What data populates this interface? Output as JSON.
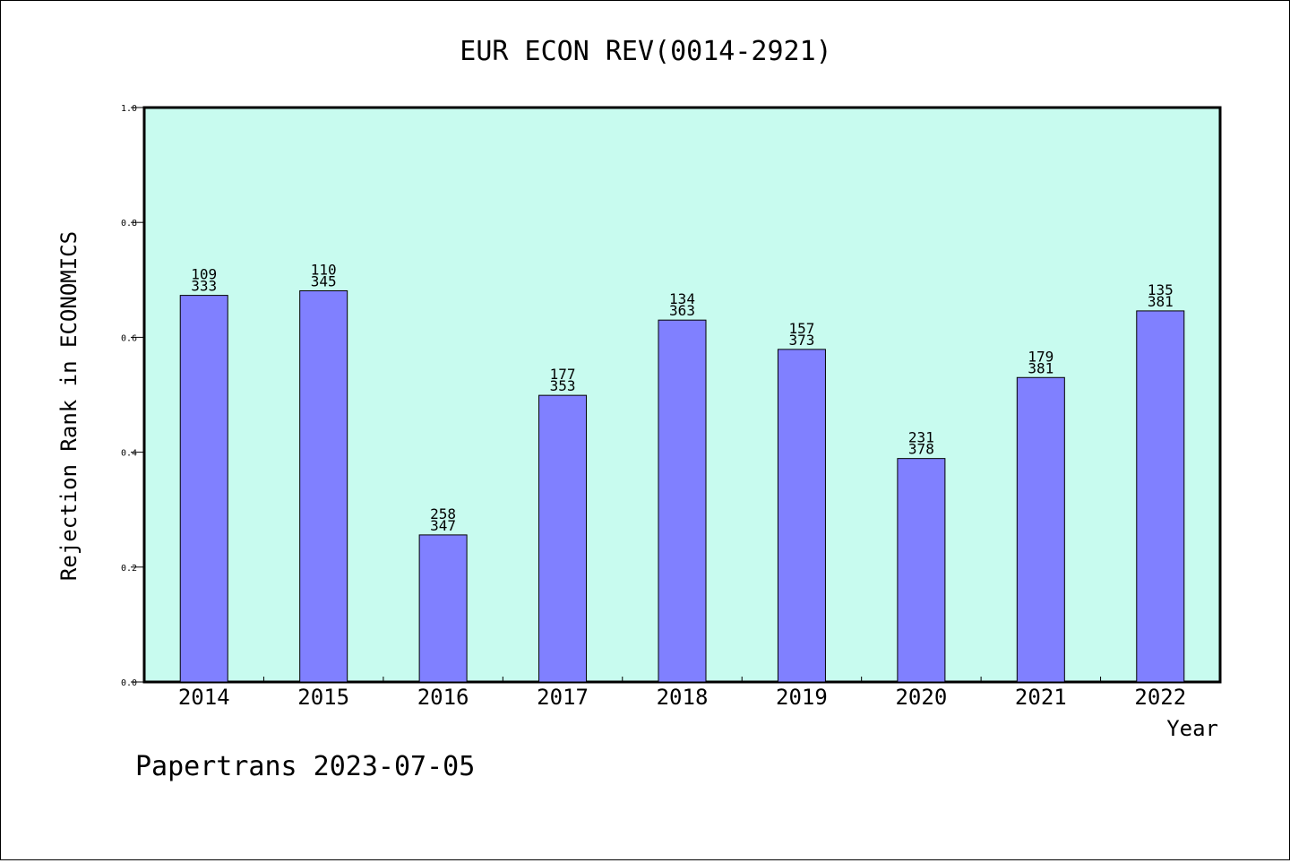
{
  "colors": {
    "plot_background": "#c8fbef",
    "bar_fill": "#8080ff",
    "bar_stroke": "#000000",
    "axis": "#000000"
  },
  "chart_data": {
    "type": "bar",
    "title": "EUR ECON REV(0014-2921)",
    "xlabel": "Year",
    "ylabel": "Rejection Rank in ECONOMICS",
    "ylim": [
      0.0,
      1.0
    ],
    "yticks": [
      "0.0",
      "0.2",
      "0.4",
      "0.6",
      "0.8",
      "1.0"
    ],
    "grid": false,
    "categories": [
      "2014",
      "2015",
      "2016",
      "2017",
      "2018",
      "2019",
      "2020",
      "2021",
      "2022"
    ],
    "values": [
      0.673,
      0.681,
      0.256,
      0.499,
      0.63,
      0.579,
      0.389,
      0.53,
      0.646
    ],
    "rank_labels": [
      "109",
      "110",
      "258",
      "177",
      "134",
      "157",
      "231",
      "179",
      "135"
    ],
    "total_labels": [
      "333",
      "345",
      "347",
      "353",
      "363",
      "373",
      "378",
      "381",
      "381"
    ]
  },
  "footer": {
    "credit": "Papertrans 2023-07-05"
  }
}
